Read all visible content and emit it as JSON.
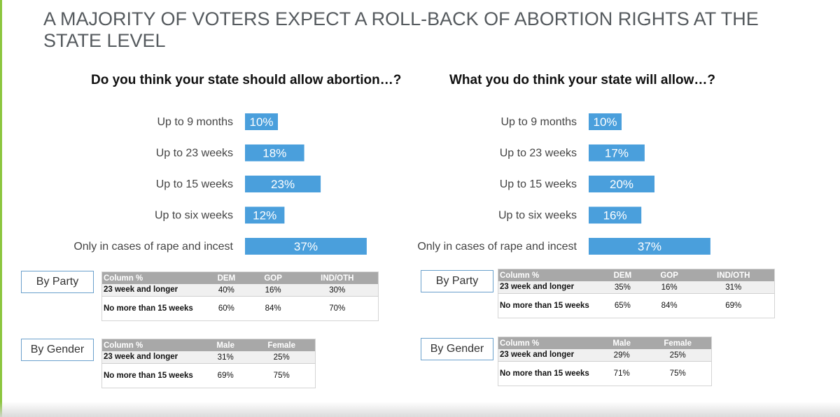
{
  "title": "A MAJORITY OF VOTERS EXPECT A ROLL-BACK OF ABORTION RIGHTS AT THE STATE LEVEL",
  "colors": {
    "bar": "#4a9fdc",
    "accent": "#8cc63f",
    "table_header": "#a8a8a8"
  },
  "chart_data": [
    {
      "type": "bar",
      "orientation": "horizontal",
      "title": "Do you think your state should allow abortion…?",
      "categories": [
        "Up to 9 months",
        "Up to 23 weeks",
        "Up to 15 weeks",
        "Up to six weeks",
        "Only in cases of rape and incest"
      ],
      "values": [
        10,
        18,
        23,
        12,
        37
      ],
      "value_labels": [
        "10%",
        "18%",
        "23%",
        "12%",
        "37%"
      ],
      "unit": "%",
      "grid": false
    },
    {
      "type": "bar",
      "orientation": "horizontal",
      "title": "What you do think your state will allow…?",
      "categories": [
        "Up to 9 months",
        "Up to 23 weeks",
        "Up to 15 weeks",
        "Up to six weeks",
        "Only in cases of rape and incest"
      ],
      "values": [
        10,
        17,
        20,
        16,
        37
      ],
      "value_labels": [
        "10%",
        "17%",
        "20%",
        "16%",
        "37%"
      ],
      "unit": "%",
      "grid": false
    }
  ],
  "panels": [
    {
      "party": {
        "button": "By Party",
        "header": [
          "Column %",
          "DEM",
          "GOP",
          "IND/OTH"
        ],
        "rows": [
          [
            "23 week and longer",
            "40%",
            "16%",
            "30%"
          ],
          [
            "No more than 15 weeks",
            "60%",
            "84%",
            "70%"
          ]
        ]
      },
      "gender": {
        "button": "By Gender",
        "header": [
          "Column %",
          "Male",
          "Female"
        ],
        "rows": [
          [
            "23 week and longer",
            "31%",
            "25%"
          ],
          [
            "No more than 15 weeks",
            "69%",
            "75%"
          ]
        ]
      }
    },
    {
      "party": {
        "button": "By Party",
        "header": [
          "Column %",
          "DEM",
          "GOP",
          "IND/OTH"
        ],
        "rows": [
          [
            "23 week and longer",
            "35%",
            "16%",
            "31%"
          ],
          [
            "No more than 15 weeks",
            "65%",
            "84%",
            "69%"
          ]
        ]
      },
      "gender": {
        "button": "By Gender",
        "header": [
          "Column %",
          "Male",
          "Female"
        ],
        "rows": [
          [
            "23 week and longer",
            "29%",
            "25%"
          ],
          [
            "No more than 15 weeks",
            "71%",
            "75%"
          ]
        ]
      }
    }
  ]
}
